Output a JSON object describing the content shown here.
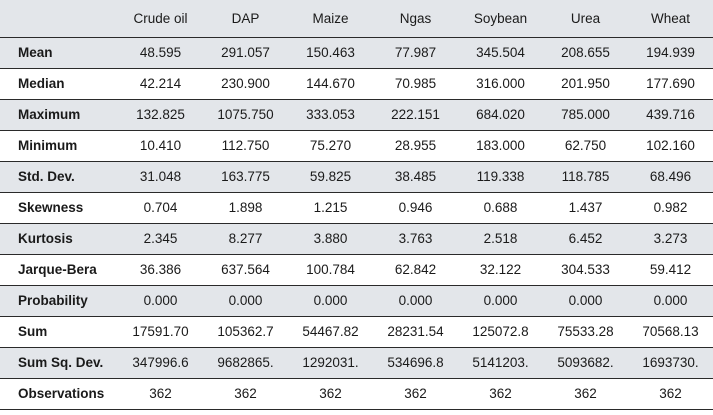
{
  "table": {
    "headers": [
      "",
      "Crude oil",
      "DAP",
      "Maize",
      "Ngas",
      "Soybean",
      "Urea",
      "Wheat"
    ],
    "rows": [
      {
        "label": "Mean",
        "values": [
          "48.595",
          "291.057",
          "150.463",
          "77.987",
          "345.504",
          "208.655",
          "194.939"
        ]
      },
      {
        "label": "Median",
        "values": [
          "42.214",
          "230.900",
          "144.670",
          "70.985",
          "316.000",
          "201.950",
          "177.690"
        ]
      },
      {
        "label": "Maximum",
        "values": [
          "132.825",
          "1075.750",
          "333.053",
          "222.151",
          "684.020",
          "785.000",
          "439.716"
        ]
      },
      {
        "label": "Minimum",
        "values": [
          "10.410",
          "112.750",
          "75.270",
          "28.955",
          "183.000",
          "62.750",
          "102.160"
        ]
      },
      {
        "label": "Std. Dev.",
        "values": [
          "31.048",
          "163.775",
          "59.825",
          "38.485",
          "119.338",
          "118.785",
          "68.496"
        ]
      },
      {
        "label": "Skewness",
        "values": [
          "0.704",
          "1.898",
          "1.215",
          "0.946",
          "0.688",
          "1.437",
          "0.982"
        ]
      },
      {
        "label": "Kurtosis",
        "values": [
          "2.345",
          "8.277",
          "3.880",
          "3.763",
          "2.518",
          "6.452",
          "3.273"
        ]
      },
      {
        "label": "Jarque-Bera",
        "values": [
          "36.386",
          "637.564",
          "100.784",
          "62.842",
          "32.122",
          "304.533",
          "59.412"
        ]
      },
      {
        "label": "Probability",
        "values": [
          "0.000",
          "0.000",
          "0.000",
          "0.000",
          "0.000",
          "0.000",
          "0.000"
        ]
      },
      {
        "label": "Sum",
        "values": [
          "17591.70",
          "105362.7",
          "54467.82",
          "28231.54",
          "125072.8",
          "75533.28",
          "70568.13"
        ]
      },
      {
        "label": "Sum Sq. Dev.",
        "values": [
          "347996.6",
          "9682865.",
          "1292031.",
          "534696.8",
          "5141203.",
          "5093682.",
          "1693730."
        ]
      },
      {
        "label": "Observations",
        "values": [
          "362",
          "362",
          "362",
          "362",
          "362",
          "362",
          "362"
        ]
      }
    ]
  },
  "colors": {
    "header_bg": "#e3e6ea",
    "stripe_bg": "#e3e6ea",
    "rule": "#2a2a2a"
  }
}
